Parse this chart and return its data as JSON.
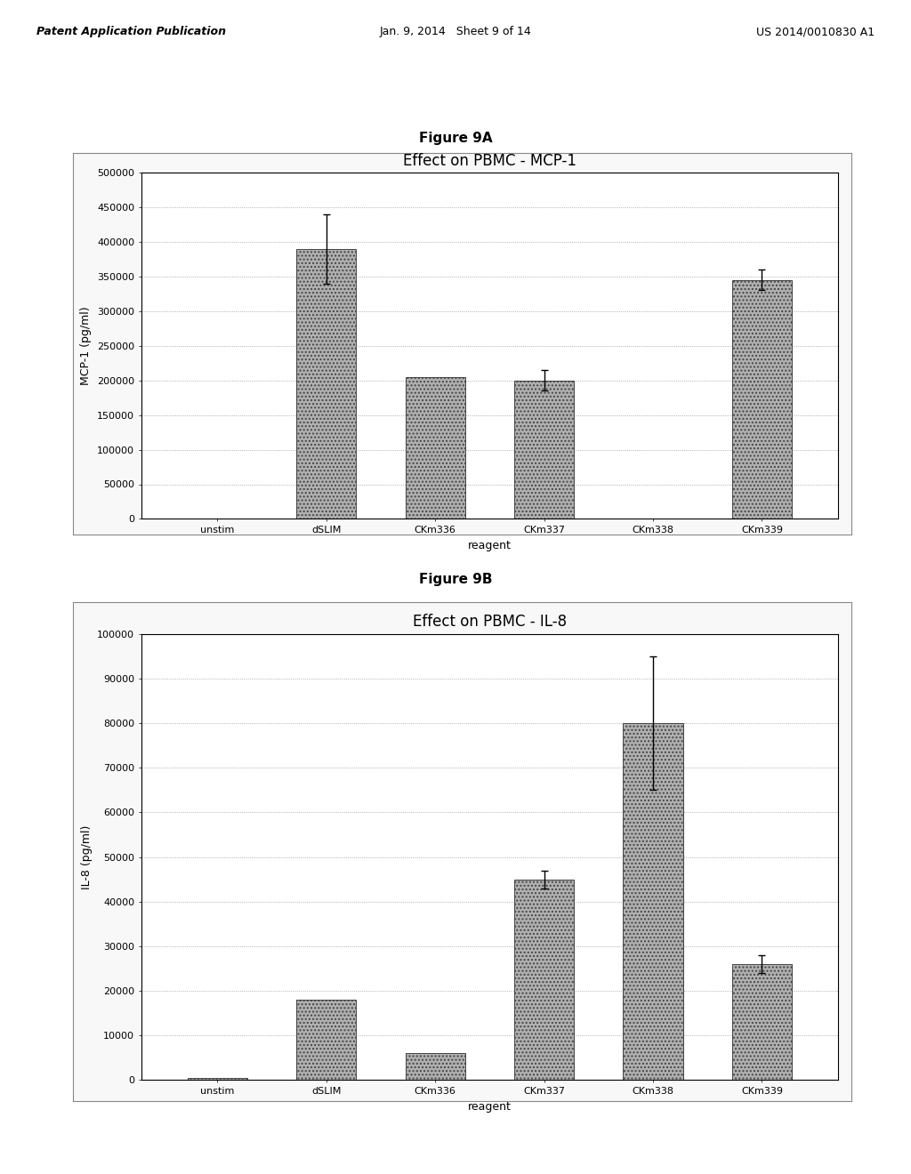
{
  "page_header": {
    "left": "Patent Application Publication",
    "center": "Jan. 9, 2014   Sheet 9 of 14",
    "right": "US 2014/0010830 A1"
  },
  "fig9a": {
    "title_label": "Figure 9A",
    "chart_title": "Effect on PBMC - MCP-1",
    "ylabel": "MCP-1 (pg/ml)",
    "xlabel": "reagent",
    "categories": [
      "unstim",
      "dSLIM",
      "CKm336",
      "CKm337",
      "CKm338",
      "CKm339"
    ],
    "values": [
      0,
      390000,
      205000,
      200000,
      0,
      345000
    ],
    "errors": [
      0,
      50000,
      0,
      15000,
      0,
      15000
    ],
    "ylim": [
      0,
      500000
    ],
    "yticks": [
      0,
      50000,
      100000,
      150000,
      200000,
      250000,
      300000,
      350000,
      400000,
      450000,
      500000
    ],
    "ytick_labels": [
      "0",
      "50000",
      "100000",
      "150000",
      "200000",
      "250000",
      "300000",
      "350000",
      "400000",
      "450000",
      "500000"
    ],
    "bar_color": "#b0b0b0",
    "bar_edgecolor": "#444444",
    "bar_hatch": "....",
    "bar_width": 0.55
  },
  "fig9b": {
    "title_label": "Figure 9B",
    "chart_title": "Effect on PBMC - IL-8",
    "ylabel": "IL-8 (pg/ml)",
    "xlabel": "reagent",
    "categories": [
      "unstim",
      "dSLIM",
      "CKm336",
      "CKm337",
      "CKm338",
      "CKm339"
    ],
    "values": [
      500,
      18000,
      6000,
      45000,
      80000,
      26000
    ],
    "errors": [
      0,
      0,
      0,
      2000,
      15000,
      2000
    ],
    "ylim": [
      0,
      100000
    ],
    "yticks": [
      0,
      10000,
      20000,
      30000,
      40000,
      50000,
      60000,
      70000,
      80000,
      90000,
      100000
    ],
    "ytick_labels": [
      "0",
      "10000",
      "20000",
      "30000",
      "40000",
      "50000",
      "60000",
      "70000",
      "80000",
      "90000",
      "100000"
    ],
    "bar_color": "#b0b0b0",
    "bar_edgecolor": "#444444",
    "bar_hatch": "....",
    "bar_width": 0.55
  },
  "background_color": "#ffffff",
  "figure_label_fontsize": 11,
  "chart_title_fontsize": 12,
  "axis_label_fontsize": 9,
  "tick_fontsize": 8,
  "header_fontsize": 9
}
